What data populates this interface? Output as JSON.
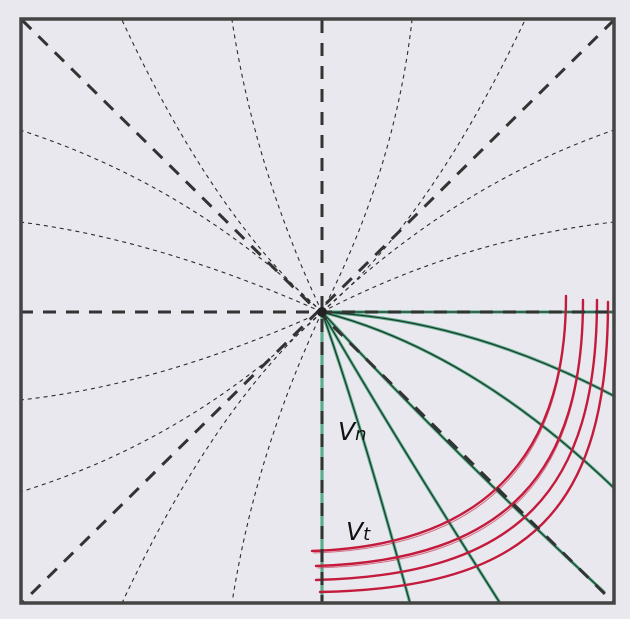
{
  "labels": {
    "vn_main": "V",
    "vn_sub": "n",
    "vt_main": "V",
    "vt_sub": "t"
  },
  "colors": {
    "background": "#e6e6ec",
    "frame": "#444444",
    "dashed": "#333333",
    "green": "#2e9a6a",
    "red": "#c41b3c"
  }
}
